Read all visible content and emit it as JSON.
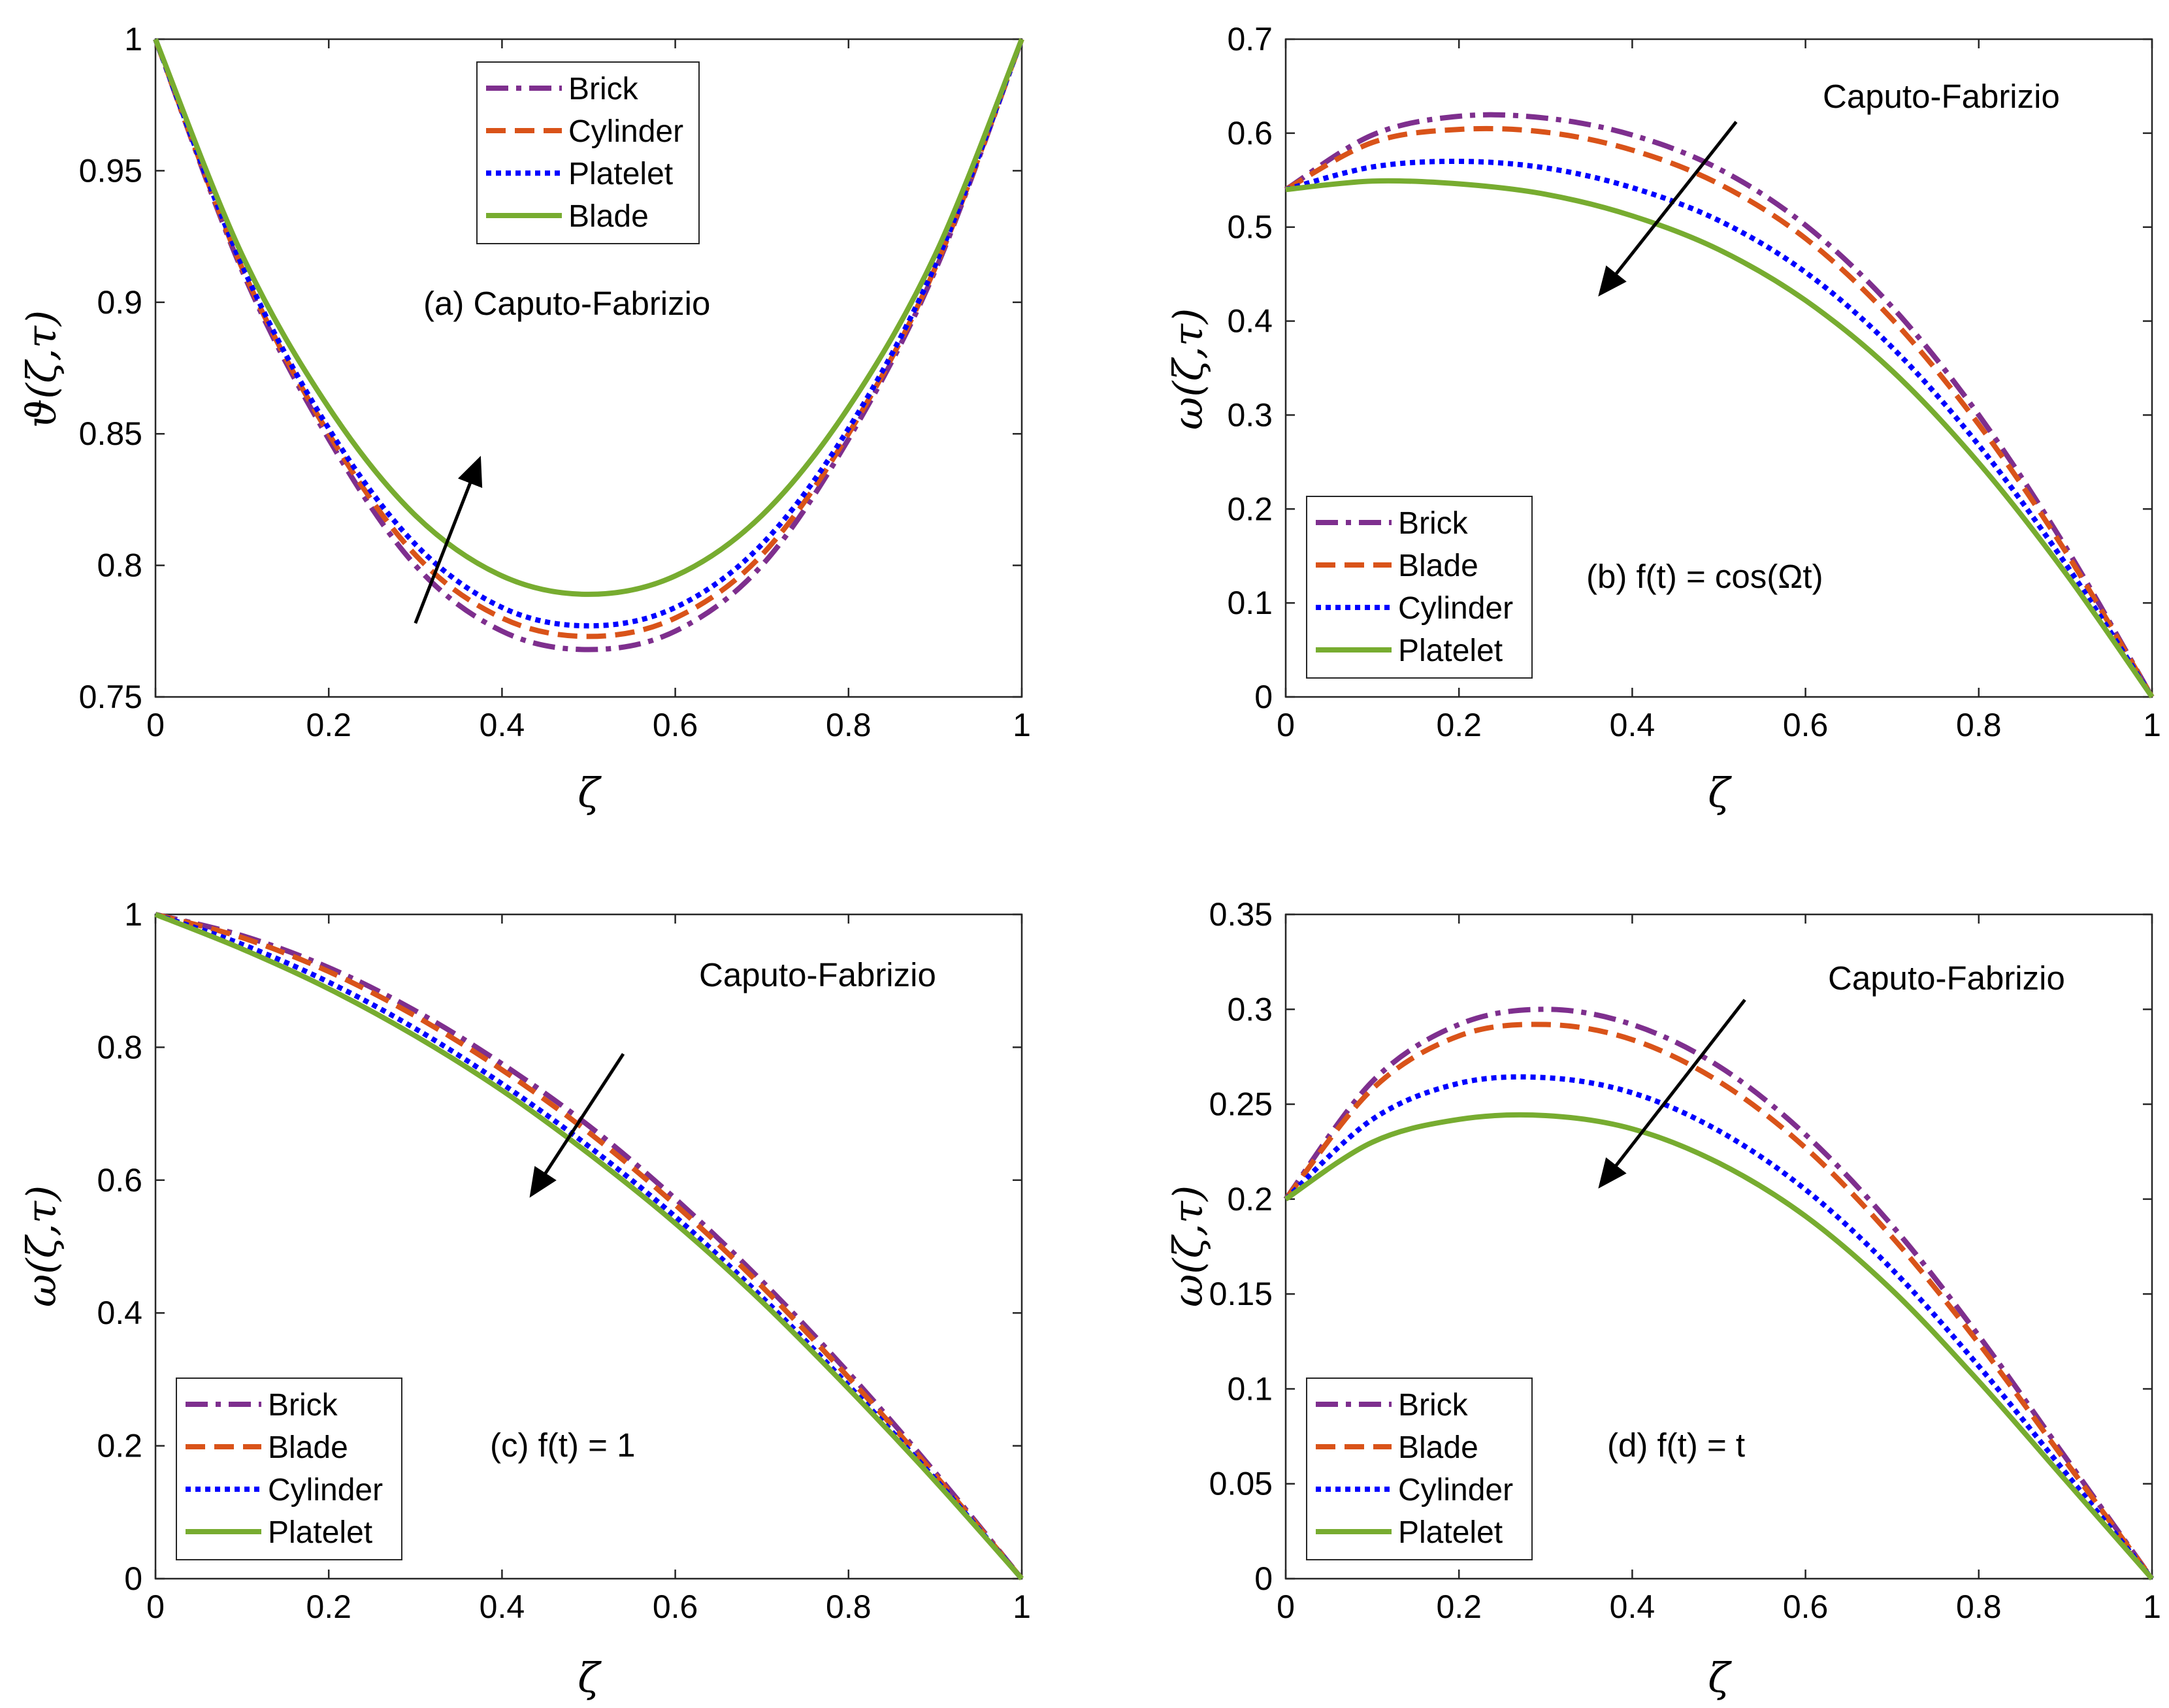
{
  "figure": {
    "title": ""
  },
  "chart_data": [
    {
      "id": "a",
      "type": "line",
      "title": "",
      "annotation": "(a) Caputo-Fabrizio",
      "xlabel": "ζ",
      "ylabel": "ϑ(ζ,τ)",
      "xlim": [
        0,
        1
      ],
      "ylim": [
        0.75,
        1
      ],
      "xticks": [
        0,
        0.2,
        0.4,
        0.6,
        0.8,
        1
      ],
      "xtick_labels": [
        "0",
        "0.2",
        "0.4",
        "0.6",
        "0.8",
        "1"
      ],
      "yticks": [
        0.75,
        0.8,
        0.85,
        0.9,
        0.95,
        1
      ],
      "ytick_labels": [
        "0.75",
        "0.8",
        "0.85",
        "0.9",
        "0.95",
        "1"
      ],
      "legend_position": "top-center",
      "arrow": {
        "from": [
          0.3,
          0.778
        ],
        "to": [
          0.37,
          0.837
        ],
        "direction": "up"
      },
      "x": [
        0,
        0.1,
        0.2,
        0.3,
        0.4,
        0.5,
        0.6,
        0.7,
        0.8,
        0.9,
        1
      ],
      "series": [
        {
          "name": "Brick",
          "style": "dashdot",
          "color": "#7e2f8e",
          "values": [
            1,
            0.912,
            0.848,
            0.8,
            0.775,
            0.768,
            0.775,
            0.8,
            0.848,
            0.912,
            1
          ]
        },
        {
          "name": "Cylinder",
          "style": "dashed",
          "color": "#d95319",
          "values": [
            1,
            0.913,
            0.85,
            0.804,
            0.78,
            0.773,
            0.78,
            0.804,
            0.85,
            0.913,
            1
          ]
        },
        {
          "name": "Platelet",
          "style": "dotted",
          "color": "#0000ff",
          "values": [
            1,
            0.914,
            0.852,
            0.808,
            0.784,
            0.777,
            0.784,
            0.808,
            0.852,
            0.914,
            1
          ]
        },
        {
          "name": "Blade",
          "style": "solid",
          "color": "#77ac30",
          "values": [
            1,
            0.918,
            0.86,
            0.819,
            0.796,
            0.789,
            0.796,
            0.819,
            0.86,
            0.918,
            1
          ]
        }
      ]
    },
    {
      "id": "b",
      "type": "line",
      "title": "",
      "annotation": "(b) f(t) = cos(Ωt)",
      "annotation2": "Caputo-Fabrizio",
      "xlabel": "ζ",
      "ylabel": "ω(ζ,τ)",
      "xlim": [
        0,
        1
      ],
      "ylim": [
        0,
        0.7
      ],
      "xticks": [
        0,
        0.2,
        0.4,
        0.6,
        0.8,
        1
      ],
      "xtick_labels": [
        "0",
        "0.2",
        "0.4",
        "0.6",
        "0.8",
        "1"
      ],
      "yticks": [
        0,
        0.1,
        0.2,
        0.3,
        0.4,
        0.5,
        0.6,
        0.7
      ],
      "ytick_labels": [
        "0",
        "0.1",
        "0.2",
        "0.3",
        "0.4",
        "0.5",
        "0.6",
        "0.7"
      ],
      "legend_position": "bottom-left",
      "arrow": {
        "from": [
          0.52,
          0.612
        ],
        "to": [
          0.37,
          0.437
        ],
        "direction": "down"
      },
      "x": [
        0,
        0.1,
        0.2,
        0.3,
        0.4,
        0.5,
        0.6,
        0.7,
        0.8,
        0.9,
        1
      ],
      "series": [
        {
          "name": "Brick",
          "style": "dashdot",
          "color": "#7e2f8e",
          "values": [
            0.54,
            0.598,
            0.618,
            0.616,
            0.598,
            0.562,
            0.502,
            0.415,
            0.3,
            0.16,
            0
          ]
        },
        {
          "name": "Blade",
          "style": "dashed",
          "color": "#d95319",
          "values": [
            0.54,
            0.59,
            0.604,
            0.601,
            0.582,
            0.546,
            0.488,
            0.402,
            0.29,
            0.155,
            0
          ]
        },
        {
          "name": "Cylinder",
          "style": "dotted",
          "color": "#0000ff",
          "values": [
            0.54,
            0.564,
            0.57,
            0.563,
            0.542,
            0.507,
            0.452,
            0.372,
            0.268,
            0.142,
            0
          ]
        },
        {
          "name": "Platelet",
          "style": "solid",
          "color": "#77ac30",
          "values": [
            0.54,
            0.549,
            0.546,
            0.535,
            0.512,
            0.476,
            0.422,
            0.347,
            0.249,
            0.132,
            0
          ]
        }
      ]
    },
    {
      "id": "c",
      "type": "line",
      "title": "",
      "annotation": "(c) f(t) = 1",
      "annotation2": "Caputo-Fabrizio",
      "xlabel": "ζ",
      "ylabel": "ω(ζ,τ)",
      "xlim": [
        0,
        1
      ],
      "ylim": [
        0,
        1
      ],
      "xticks": [
        0,
        0.2,
        0.4,
        0.6,
        0.8,
        1
      ],
      "xtick_labels": [
        "0",
        "0.2",
        "0.4",
        "0.6",
        "0.8",
        "1"
      ],
      "yticks": [
        0,
        0.2,
        0.4,
        0.6,
        0.8,
        1
      ],
      "ytick_labels": [
        "0",
        "0.2",
        "0.4",
        "0.6",
        "0.8",
        "1"
      ],
      "legend_position": "bottom-left",
      "arrow": {
        "from": [
          0.54,
          0.79
        ],
        "to": [
          0.44,
          0.59
        ],
        "direction": "down"
      },
      "x": [
        0,
        0.1,
        0.2,
        0.3,
        0.4,
        0.5,
        0.6,
        0.7,
        0.8,
        0.9,
        1
      ],
      "series": [
        {
          "name": "Brick",
          "style": "dashdot",
          "color": "#7e2f8e",
          "values": [
            1,
            0.968,
            0.92,
            0.855,
            0.775,
            0.682,
            0.572,
            0.448,
            0.31,
            0.16,
            0
          ]
        },
        {
          "name": "Blade",
          "style": "dashed",
          "color": "#d95319",
          "values": [
            1,
            0.965,
            0.914,
            0.847,
            0.766,
            0.672,
            0.563,
            0.44,
            0.303,
            0.156,
            0
          ]
        },
        {
          "name": "Cylinder",
          "style": "dotted",
          "color": "#0000ff",
          "values": [
            1,
            0.955,
            0.898,
            0.828,
            0.745,
            0.651,
            0.545,
            0.424,
            0.291,
            0.15,
            0
          ]
        },
        {
          "name": "Platelet",
          "style": "solid",
          "color": "#77ac30",
          "values": [
            1,
            0.948,
            0.888,
            0.817,
            0.735,
            0.64,
            0.535,
            0.417,
            0.286,
            0.147,
            0
          ]
        }
      ]
    },
    {
      "id": "d",
      "type": "line",
      "title": "",
      "annotation": "(d) f(t) = t",
      "annotation2": "Caputo-Fabrizio",
      "xlabel": "ζ",
      "ylabel": "ω(ζ,τ)",
      "xlim": [
        0,
        1
      ],
      "ylim": [
        0,
        0.35
      ],
      "xticks": [
        0,
        0.2,
        0.4,
        0.6,
        0.8,
        1
      ],
      "xtick_labels": [
        "0",
        "0.2",
        "0.4",
        "0.6",
        "0.8",
        "1"
      ],
      "yticks": [
        0,
        0.05,
        0.1,
        0.15,
        0.2,
        0.25,
        0.3,
        0.35
      ],
      "ytick_labels": [
        "0",
        "0.05",
        "0.1",
        "0.15",
        "0.2",
        "0.25",
        "0.3",
        "0.35"
      ],
      "legend_position": "bottom-left",
      "arrow": {
        "from": [
          0.53,
          0.305
        ],
        "to": [
          0.37,
          0.211
        ],
        "direction": "down"
      },
      "x": [
        0,
        0.1,
        0.2,
        0.3,
        0.4,
        0.5,
        0.6,
        0.7,
        0.8,
        0.9,
        1
      ],
      "series": [
        {
          "name": "Brick",
          "style": "dashdot",
          "color": "#7e2f8e",
          "values": [
            0.2,
            0.262,
            0.292,
            0.3,
            0.292,
            0.27,
            0.234,
            0.186,
            0.128,
            0.064,
            0
          ]
        },
        {
          "name": "Blade",
          "style": "dashed",
          "color": "#d95319",
          "values": [
            0.2,
            0.258,
            0.286,
            0.292,
            0.284,
            0.262,
            0.227,
            0.18,
            0.124,
            0.062,
            0
          ]
        },
        {
          "name": "Cylinder",
          "style": "dotted",
          "color": "#0000ff",
          "values": [
            0.2,
            0.242,
            0.261,
            0.264,
            0.256,
            0.236,
            0.205,
            0.163,
            0.112,
            0.056,
            0
          ]
        },
        {
          "name": "Platelet",
          "style": "solid",
          "color": "#77ac30",
          "values": [
            0.2,
            0.23,
            0.242,
            0.244,
            0.237,
            0.219,
            0.191,
            0.152,
            0.104,
            0.052,
            0
          ]
        }
      ]
    }
  ]
}
